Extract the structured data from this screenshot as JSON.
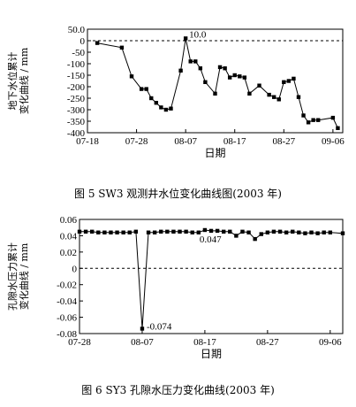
{
  "fig1": {
    "caption": "图 5  SW3 观测井水位变化曲线图(2003 年)",
    "chart_data": {
      "type": "line",
      "xlabel": "日期",
      "ylabel": [
        "地下水位累计",
        "变化曲线 / mm"
      ],
      "xlim": [
        0,
        52
      ],
      "ylim": [
        -400,
        50
      ],
      "yticks": [
        "50.0",
        "0",
        "-50",
        "-100",
        "-150",
        "-200",
        "-250",
        "-300",
        "-350",
        "-400"
      ],
      "ytick_values": [
        50,
        0,
        -50,
        -100,
        -150,
        -200,
        -250,
        -300,
        -350,
        -400
      ],
      "xticks": [
        "07-18",
        "07-28",
        "08-07",
        "08-17",
        "08-27",
        "09-06"
      ],
      "xtick_values": [
        0,
        10,
        20,
        30,
        40,
        50
      ],
      "baseline": 0,
      "annotations": [
        {
          "text": "10.0",
          "x": 20,
          "y": 10
        }
      ],
      "series": [
        {
          "x": [
            2,
            7,
            9,
            11,
            12,
            13,
            14,
            15,
            16,
            17,
            19,
            20,
            21,
            22,
            23,
            24,
            26,
            27,
            28,
            29,
            30,
            31,
            32,
            33,
            35,
            37,
            38,
            39,
            40,
            41,
            42,
            43,
            44,
            45,
            46,
            47,
            50,
            51
          ],
          "y": [
            -10,
            -30,
            -155,
            -210,
            -210,
            -250,
            -270,
            -290,
            -300,
            -295,
            -130,
            10,
            -90,
            -90,
            -120,
            -180,
            -230,
            -115,
            -120,
            -160,
            -150,
            -155,
            -160,
            -230,
            -195,
            -235,
            -245,
            -255,
            -180,
            -175,
            -165,
            -245,
            -325,
            -355,
            -345,
            -345,
            -335,
            -380
          ]
        }
      ]
    }
  },
  "fig2": {
    "caption": "图 6  SY3 孔隙水压力变化曲线(2003 年)",
    "chart_data": {
      "type": "line",
      "xlabel": "日期",
      "ylabel": [
        "孔隙水压力累计",
        "变化曲线 / mm"
      ],
      "xlim": [
        0,
        42
      ],
      "ylim": [
        -0.08,
        0.06
      ],
      "yticks": [
        "0.06",
        "0.04",
        "0.02",
        "0",
        "-0.02",
        "-0.04",
        "-0.06",
        "-0.08"
      ],
      "ytick_values": [
        0.06,
        0.04,
        0.02,
        0,
        -0.02,
        -0.04,
        -0.06,
        -0.08
      ],
      "xticks": [
        "07-28",
        "08-07",
        "08-17",
        "08-27",
        "09-06"
      ],
      "xtick_values": [
        0,
        10,
        20,
        30,
        40
      ],
      "baseline": 0,
      "annotations": [
        {
          "text": "-0.074",
          "x": 10,
          "y": -0.074
        },
        {
          "text": "0.047",
          "x": 20,
          "y": 0.047
        }
      ],
      "series": [
        {
          "x": [
            0,
            1,
            2,
            3,
            4,
            5,
            6,
            7,
            8,
            9,
            10,
            11,
            12,
            13,
            14,
            15,
            16,
            17,
            18,
            19,
            20,
            21,
            22,
            23,
            24,
            25,
            26,
            27,
            28,
            29,
            30,
            31,
            32,
            33,
            34,
            35,
            36,
            37,
            38,
            39,
            40,
            42
          ],
          "y": [
            0.045,
            0.045,
            0.045,
            0.044,
            0.044,
            0.044,
            0.044,
            0.044,
            0.044,
            0.045,
            -0.074,
            0.044,
            0.044,
            0.045,
            0.045,
            0.045,
            0.045,
            0.045,
            0.044,
            0.044,
            0.047,
            0.046,
            0.046,
            0.045,
            0.045,
            0.04,
            0.045,
            0.044,
            0.036,
            0.042,
            0.044,
            0.045,
            0.045,
            0.044,
            0.045,
            0.044,
            0.043,
            0.044,
            0.043,
            0.044,
            0.044,
            0.043
          ]
        }
      ]
    }
  }
}
